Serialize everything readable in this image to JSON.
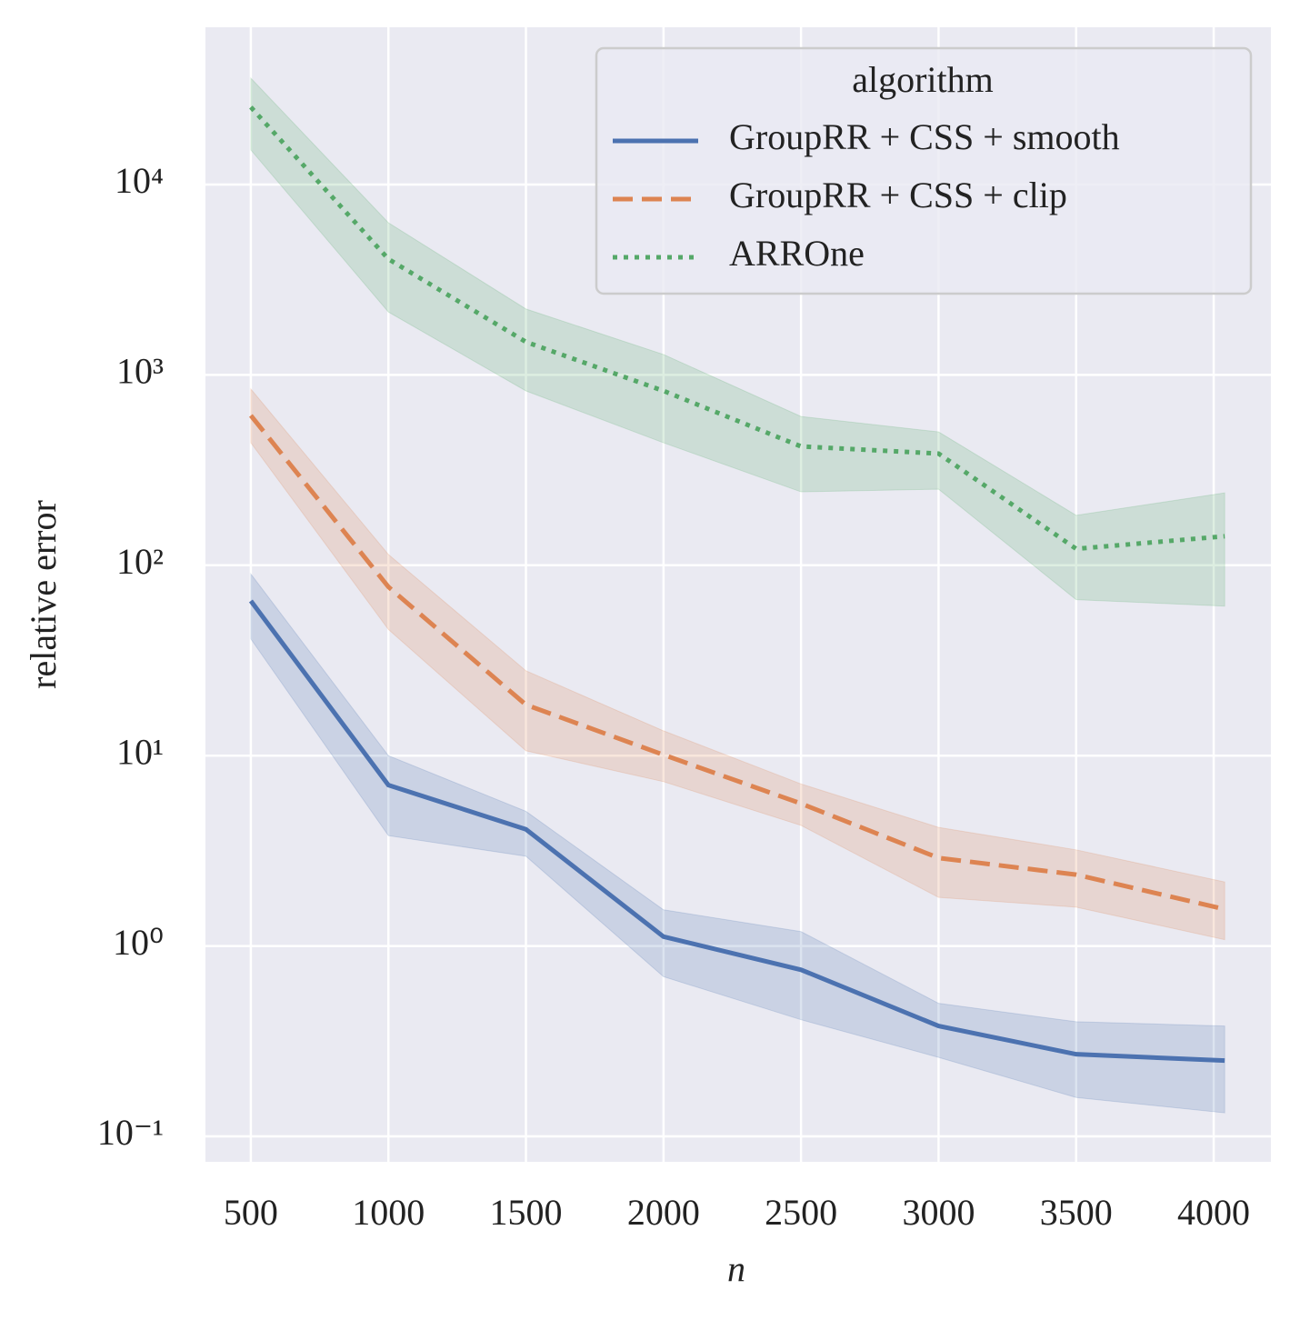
{
  "chart_data": {
    "type": "line",
    "x_label": "n",
    "y_label": "relative error",
    "x": [
      500,
      1000,
      1500,
      2000,
      2500,
      3000,
      3500,
      4040
    ],
    "xlim": [
      335,
      4208
    ],
    "xticks": [
      500,
      1000,
      1500,
      2000,
      2500,
      3000,
      3500,
      4000
    ],
    "ylim": [
      0.0735,
      67000
    ],
    "log_y": true,
    "yticks": [
      {
        "value": 0.1,
        "label": "10⁻¹"
      },
      {
        "value": 1,
        "label": "10⁰"
      },
      {
        "value": 10,
        "label": "10¹"
      },
      {
        "value": 100,
        "label": "10²"
      },
      {
        "value": 1000,
        "label": "10³"
      },
      {
        "value": 10000,
        "label": "10⁴"
      }
    ],
    "grid": true,
    "legend_title": "algorithm",
    "legend_position": "upper right",
    "series": [
      {
        "name": "GroupRR + CSS + smooth",
        "color": "#4c72b0",
        "dash": "solid",
        "values": [
          65,
          7.0,
          4.1,
          1.12,
          0.75,
          0.38,
          0.27,
          0.25
        ],
        "lower": [
          41,
          3.8,
          2.96,
          0.69,
          0.41,
          0.26,
          0.16,
          0.133
        ],
        "upper": [
          90,
          10,
          5.1,
          1.55,
          1.19,
          0.5,
          0.4,
          0.38
        ]
      },
      {
        "name": "GroupRR + CSS + clip",
        "color": "#dd8452",
        "dash": "dashed",
        "values": [
          612,
          77,
          18.5,
          10.1,
          5.6,
          2.9,
          2.37,
          1.56
        ],
        "lower": [
          440,
          46,
          10.6,
          7.3,
          4.3,
          1.8,
          1.6,
          1.08
        ],
        "upper": [
          843,
          114,
          27.9,
          13.5,
          7.1,
          4.2,
          3.2,
          2.17
        ]
      },
      {
        "name": "ARROne",
        "color": "#55a868",
        "dash": "dotted",
        "values": [
          25500,
          4060,
          1490,
          824,
          421,
          386,
          122,
          142
        ],
        "lower": [
          15200,
          2140,
          824,
          440,
          243,
          251,
          66,
          61
        ],
        "upper": [
          36200,
          6300,
          2220,
          1280,
          605,
          502,
          183,
          240
        ]
      }
    ]
  }
}
